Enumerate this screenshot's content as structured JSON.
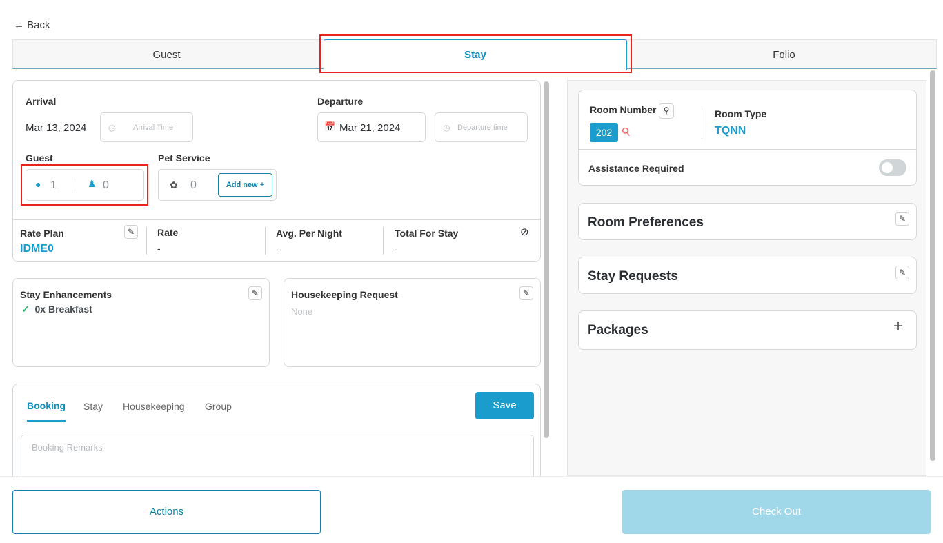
{
  "nav": {
    "back_label": "Back"
  },
  "tabs": [
    {
      "label": "Guest"
    },
    {
      "label": "Stay"
    },
    {
      "label": "Folio"
    }
  ],
  "stay": {
    "arrival_label": "Arrival",
    "arrival_date": "Mar 13, 2024",
    "arrival_time_placeholder": "Arrival Time",
    "departure_label": "Departure",
    "departure_date": "Mar 21, 2024",
    "departure_time_placeholder": "Departure time",
    "guest_label": "Guest",
    "adults": "1",
    "children": "0",
    "pet_label": "Pet Service",
    "pets": "0",
    "add_new_label": "Add new +",
    "rate_plan_label": "Rate Plan",
    "rate_plan": "IDME0",
    "rate_label": "Rate",
    "rate": "-",
    "avg_label": "Avg. Per Night",
    "avg": "-",
    "total_label": "Total For Stay",
    "total": "-"
  },
  "enhancements": {
    "title": "Stay Enhancements",
    "items": [
      "0x Breakfast"
    ]
  },
  "housekeeping": {
    "title": "Housekeeping Request",
    "value": "None"
  },
  "remarks": {
    "tabs": [
      "Booking",
      "Stay",
      "Housekeeping",
      "Group"
    ],
    "save_label": "Save",
    "placeholder": "Booking Remarks"
  },
  "room": {
    "number_label": "Room Number",
    "number": "202",
    "type_label": "Room Type",
    "type": "TQNN",
    "assistance_label": "Assistance Required",
    "assistance_on": false
  },
  "sections": {
    "preferences": "Room Preferences",
    "requests": "Stay Requests",
    "packages": "Packages"
  },
  "footer": {
    "actions_label": "Actions",
    "checkout_label": "Check Out"
  },
  "colors": {
    "accent": "#1a9ccc",
    "highlight": "#e8251c",
    "checkout_disabled": "#a0d8ea"
  }
}
